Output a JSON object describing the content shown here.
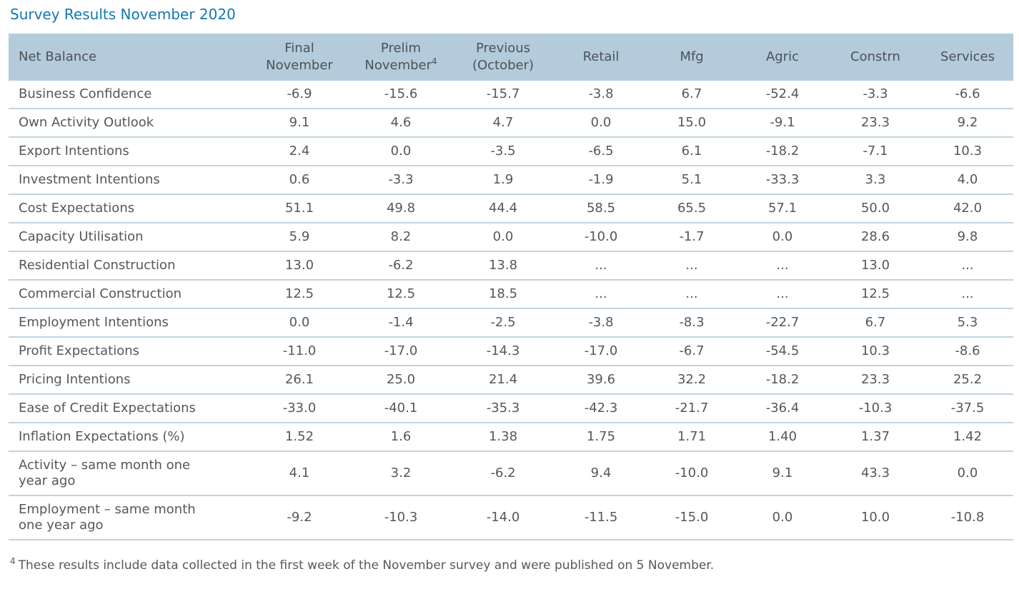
{
  "title": "Survey Results November 2020",
  "colors": {
    "title_blue": "#1577B2",
    "header_bg": "#B4CBDB",
    "header_text": "#4C5257",
    "body_text": "#54585B",
    "row_border": "#C2D4DF"
  },
  "table": {
    "label_header": "Net Balance",
    "columns": [
      {
        "key": "final-november",
        "lines": [
          "Final",
          "November"
        ]
      },
      {
        "key": "prelim-november",
        "lines": [
          "Prelim",
          "November"
        ],
        "sup": "4"
      },
      {
        "key": "previous-october",
        "lines": [
          "Previous",
          "(October)"
        ]
      },
      {
        "key": "retail",
        "lines": [
          "Retail"
        ]
      },
      {
        "key": "mfg",
        "lines": [
          "Mfg"
        ]
      },
      {
        "key": "agric",
        "lines": [
          "Agric"
        ]
      },
      {
        "key": "constrn",
        "lines": [
          "Constrn"
        ]
      },
      {
        "key": "services",
        "lines": [
          "Services"
        ]
      }
    ],
    "rows": [
      {
        "label": "Business Confidence",
        "values": [
          "-6.9",
          "-15.6",
          "-15.7",
          "-3.8",
          "6.7",
          "-52.4",
          "-3.3",
          "-6.6"
        ]
      },
      {
        "label": "Own Activity Outlook",
        "values": [
          "9.1",
          "4.6",
          "4.7",
          "0.0",
          "15.0",
          "-9.1",
          "23.3",
          "9.2"
        ]
      },
      {
        "label": "Export Intentions",
        "values": [
          "2.4",
          "0.0",
          "-3.5",
          "-6.5",
          "6.1",
          "-18.2",
          "-7.1",
          "10.3"
        ]
      },
      {
        "label": "Investment Intentions",
        "values": [
          "0.6",
          "-3.3",
          "1.9",
          "-1.9",
          "5.1",
          "-33.3",
          "3.3",
          "4.0"
        ]
      },
      {
        "label": "Cost Expectations",
        "values": [
          "51.1",
          "49.8",
          "44.4",
          "58.5",
          "65.5",
          "57.1",
          "50.0",
          "42.0"
        ]
      },
      {
        "label": "Capacity Utilisation",
        "values": [
          "5.9",
          "8.2",
          "0.0",
          "-10.0",
          "-1.7",
          "0.0",
          "28.6",
          "9.8"
        ]
      },
      {
        "label": "Residential Construction",
        "values": [
          "13.0",
          "-6.2",
          "13.8",
          "...",
          "...",
          "...",
          "13.0",
          "..."
        ]
      },
      {
        "label": "Commercial Construction",
        "values": [
          "12.5",
          "12.5",
          "18.5",
          "...",
          "...",
          "...",
          "12.5",
          "..."
        ]
      },
      {
        "label": "Employment Intentions",
        "values": [
          "0.0",
          "-1.4",
          "-2.5",
          "-3.8",
          "-8.3",
          "-22.7",
          "6.7",
          "5.3"
        ]
      },
      {
        "label": "Profit Expectations",
        "values": [
          "-11.0",
          "-17.0",
          "-14.3",
          "-17.0",
          "-6.7",
          "-54.5",
          "10.3",
          "-8.6"
        ]
      },
      {
        "label": "Pricing Intentions",
        "values": [
          "26.1",
          "25.0",
          "21.4",
          "39.6",
          "32.2",
          "-18.2",
          "23.3",
          "25.2"
        ]
      },
      {
        "label": "Ease of Credit Expectations",
        "values": [
          "-33.0",
          "-40.1",
          "-35.3",
          "-42.3",
          "-21.7",
          "-36.4",
          "-10.3",
          "-37.5"
        ]
      },
      {
        "label": "Inflation Expectations (%)",
        "values": [
          "1.52",
          "1.6",
          "1.38",
          "1.75",
          "1.71",
          "1.40",
          "1.37",
          "1.42"
        ]
      },
      {
        "label": "Activity – same month one\nyear ago",
        "values": [
          "4.1",
          "3.2",
          "-6.2",
          "9.4",
          "-10.0",
          "9.1",
          "43.3",
          "0.0"
        ]
      },
      {
        "label": "Employment – same month\none year ago",
        "values": [
          "-9.2",
          "-10.3",
          "-14.0",
          "-11.5",
          "-15.0",
          "0.0",
          "10.0",
          "-10.8"
        ]
      }
    ]
  },
  "footnote": {
    "marker": "4",
    "text": "These results include data collected in the first week of the November survey and were published on 5 November."
  }
}
